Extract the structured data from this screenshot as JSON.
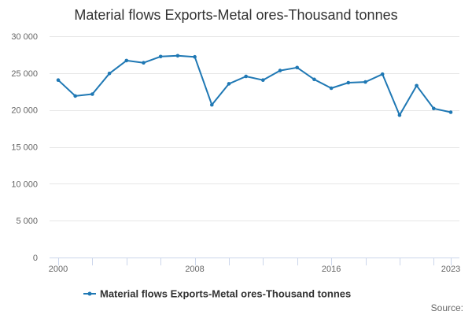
{
  "chart_data": {
    "type": "line",
    "title": "Material flows Exports-Metal ores-Thousand tonnes",
    "xlabel": "",
    "ylabel": "",
    "x": [
      2000,
      2001,
      2002,
      2003,
      2004,
      2005,
      2006,
      2007,
      2008,
      2009,
      2010,
      2011,
      2012,
      2013,
      2014,
      2015,
      2016,
      2017,
      2018,
      2019,
      2020,
      2021,
      2022,
      2023
    ],
    "series": [
      {
        "name": "Material flows Exports-Metal ores-Thousand tonnes",
        "color": "#1f78b4",
        "values": [
          24050,
          21900,
          22150,
          24950,
          26700,
          26400,
          27250,
          27350,
          27200,
          20700,
          23550,
          24550,
          24050,
          25350,
          25750,
          24150,
          22950,
          23700,
          23800,
          24850,
          19300,
          23300,
          20200,
          19700
        ]
      }
    ],
    "xlim": [
      2000,
      2023
    ],
    "ylim": [
      0,
      30000
    ],
    "y_ticks": [
      0,
      5000,
      10000,
      15000,
      20000,
      25000,
      30000
    ],
    "y_tick_labels": [
      "0",
      "5 000",
      "10 000",
      "15 000",
      "20 000",
      "25 000",
      "30 000"
    ],
    "x_tick_labels": [
      "2000",
      "2008",
      "2016",
      "2023"
    ],
    "x_tick_label_years": [
      2000,
      2008,
      2016,
      2023
    ],
    "grid": true,
    "legend": "bottom-center",
    "source": "Source:"
  }
}
